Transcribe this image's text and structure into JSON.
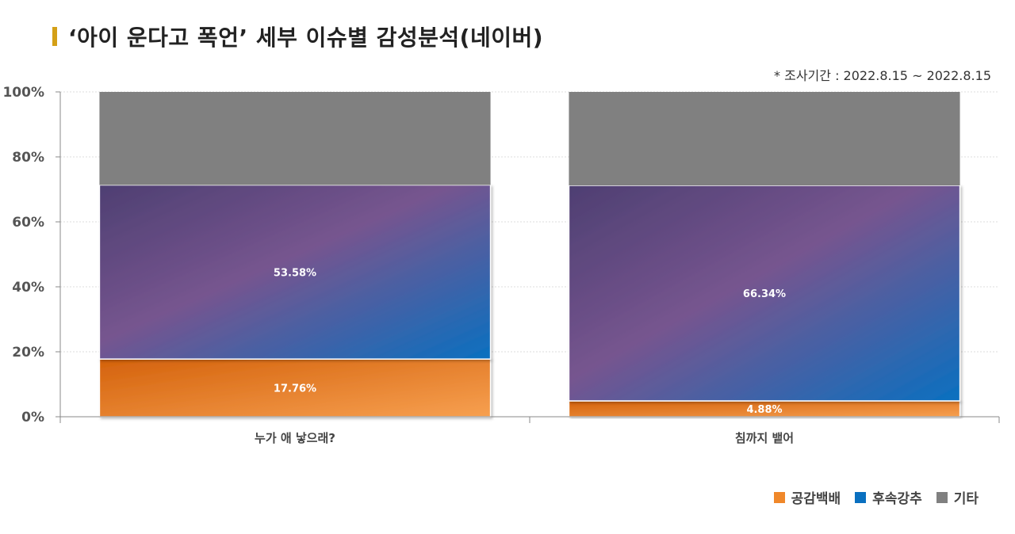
{
  "title": "‘아이 운다고 폭언’ 세부 이슈별 감성분석(네이버)",
  "period": "* 조사기간 : 2022.8.15 ~ 2022.8.15",
  "colors": {
    "title_marker": "#d4a017",
    "empathy": "#f0882a",
    "followup": "#0a70c0",
    "other": "#808080"
  },
  "chart_data": {
    "type": "bar",
    "stacked": true,
    "categories": [
      "누가 애 낳으래?",
      "침까지 뱉어"
    ],
    "series": [
      {
        "name": "공감백배",
        "values": [
          17.76,
          4.88
        ],
        "labels": [
          "17.76%",
          "4.88%"
        ]
      },
      {
        "name": "후속강추",
        "values": [
          53.58,
          66.34
        ],
        "labels": [
          "53.58%",
          "66.34%"
        ]
      },
      {
        "name": "기타",
        "values": [
          28.66,
          28.78
        ],
        "labels": [
          "",
          ""
        ]
      }
    ],
    "yticks": [
      "0%",
      "20%",
      "40%",
      "60%",
      "80%",
      "100%"
    ],
    "ylim": [
      0,
      100
    ],
    "grid": true,
    "legend_position": "bottom-right"
  }
}
